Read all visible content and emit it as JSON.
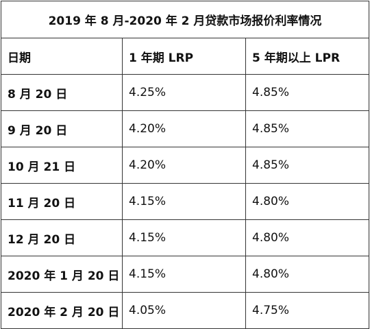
{
  "title": "2019 年 8 月-2020 年 2 月贷款市场报价利率情况",
  "table": {
    "header": [
      "日期",
      "1 年期 LRP",
      "5 年期以上 LPR"
    ],
    "rows": [
      [
        "8 月 20 日",
        "4.25%",
        "4.85%"
      ],
      [
        "9 月 20 日",
        "4.20%",
        "4.85%"
      ],
      [
        "10 月 21 日",
        "4.20%",
        "4.85%"
      ],
      [
        "11 月 20 日",
        "4.15%",
        "4.80%"
      ],
      [
        "12 月 20 日",
        "4.15%",
        "4.80%"
      ],
      [
        "2020 年 1 月 20 日",
        "4.15%",
        "4.80%"
      ],
      [
        "2020 年 2 月 20 日",
        "4.05%",
        "4.75%"
      ]
    ]
  }
}
